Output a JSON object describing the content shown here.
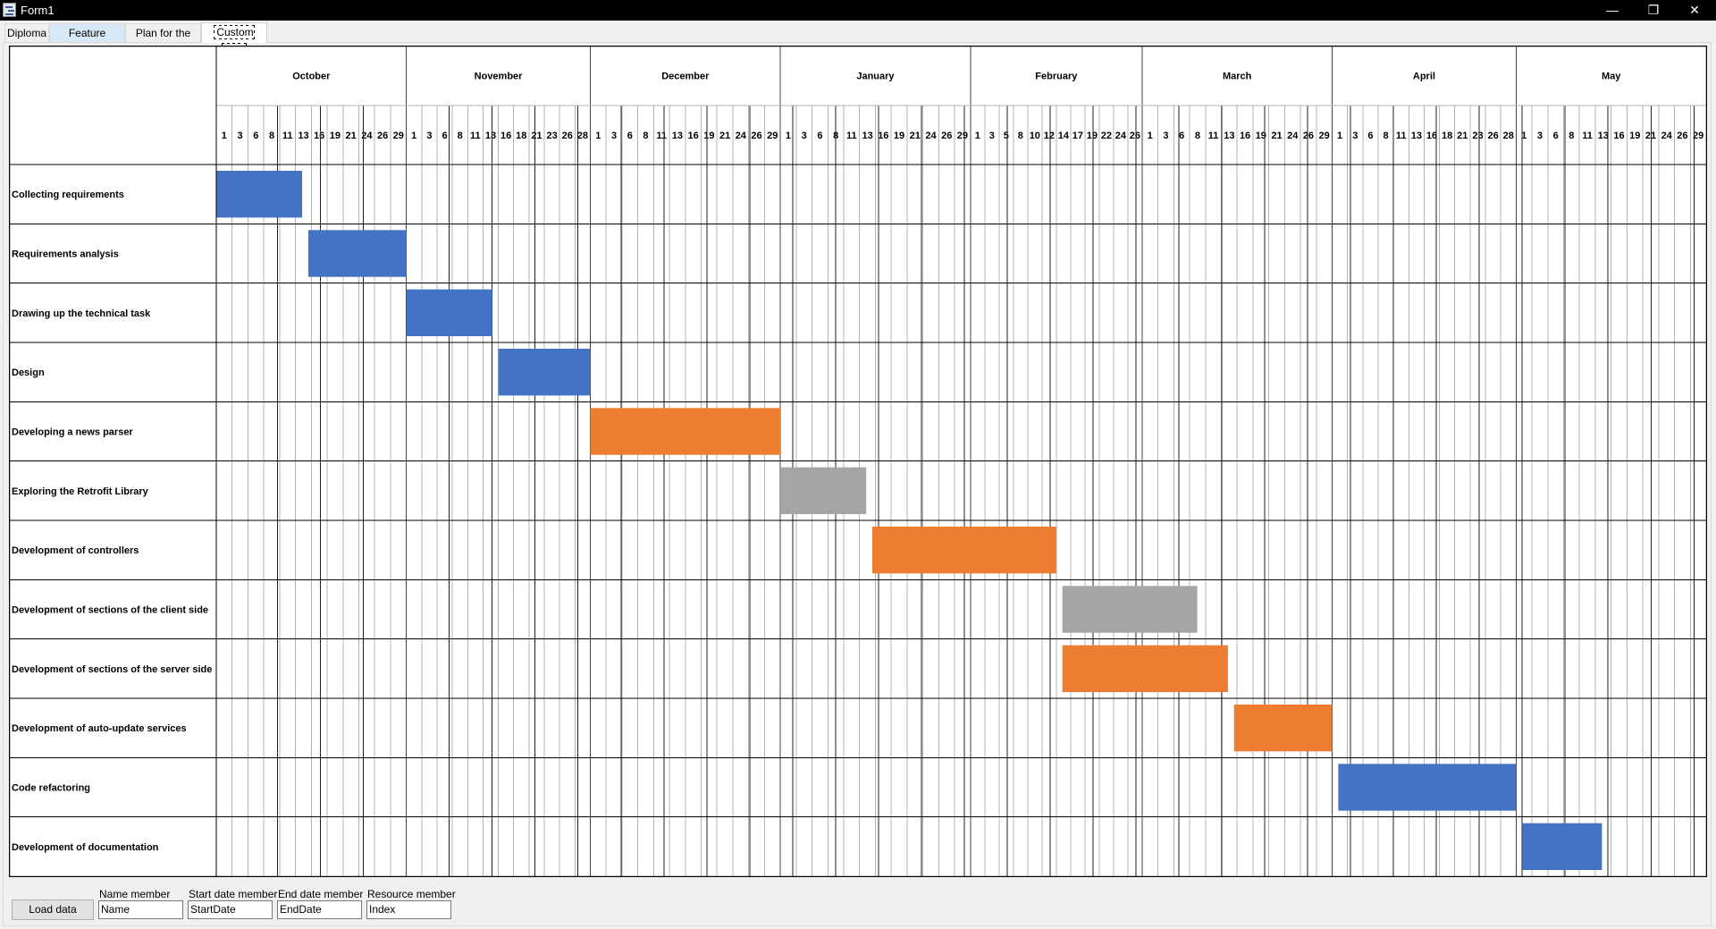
{
  "window": {
    "title": "Form1",
    "minimize_icon": "minimize-icon",
    "restore_icon": "restore-icon",
    "close_icon": "close-icon"
  },
  "tabs": [
    {
      "label": "Diploma"
    },
    {
      "label": "Feature release"
    },
    {
      "label": "Plan for the day"
    },
    {
      "label": "Custom data",
      "selected": true
    }
  ],
  "chart_data": {
    "type": "gantt",
    "months": [
      {
        "name": "October",
        "days": 31,
        "ticks": [
          1,
          3,
          6,
          8,
          11,
          13,
          16,
          19,
          21,
          24,
          26,
          29
        ]
      },
      {
        "name": "November",
        "days": 30,
        "ticks": [
          1,
          3,
          6,
          8,
          11,
          13,
          16,
          18,
          21,
          23,
          26,
          28
        ]
      },
      {
        "name": "December",
        "days": 31,
        "ticks": [
          1,
          3,
          6,
          8,
          11,
          13,
          16,
          19,
          21,
          24,
          26,
          29
        ]
      },
      {
        "name": "January",
        "days": 31,
        "ticks": [
          1,
          3,
          6,
          8,
          11,
          13,
          16,
          19,
          21,
          24,
          26,
          29
        ]
      },
      {
        "name": "February",
        "days": 28,
        "ticks": [
          1,
          3,
          5,
          8,
          10,
          12,
          14,
          17,
          19,
          22,
          24,
          26
        ]
      },
      {
        "name": "March",
        "days": 31,
        "ticks": [
          1,
          3,
          6,
          8,
          11,
          13,
          16,
          19,
          21,
          24,
          26,
          29
        ]
      },
      {
        "name": "April",
        "days": 30,
        "ticks": [
          1,
          3,
          6,
          8,
          11,
          13,
          16,
          18,
          21,
          23,
          26,
          28
        ]
      },
      {
        "name": "May",
        "days": 31,
        "ticks": [
          1,
          3,
          6,
          8,
          11,
          13,
          16,
          19,
          21,
          24,
          26,
          29
        ]
      }
    ],
    "resource_colors": [
      "#4472C4",
      "#ED7D31",
      "#A5A5A5"
    ],
    "tasks": [
      {
        "name": "Collecting requirements",
        "start": "October 1",
        "end": "October 15",
        "resource": 0
      },
      {
        "name": "Requirements analysis",
        "start": "October 16",
        "end": "November 1",
        "resource": 0
      },
      {
        "name": "Drawing up the technical task",
        "start": "November 1",
        "end": "November 15",
        "resource": 0
      },
      {
        "name": "Design",
        "start": "November 16",
        "end": "December 1",
        "resource": 0
      },
      {
        "name": "Developing a news parser",
        "start": "December 1",
        "end": "January 1",
        "resource": 1
      },
      {
        "name": "Exploring the Retrofit Library",
        "start": "January 1",
        "end": "January 15",
        "resource": 2
      },
      {
        "name": "Development of controllers",
        "start": "January 16",
        "end": "February 15",
        "resource": 1
      },
      {
        "name": "Development of sections of the client side",
        "start": "February 16",
        "end": "March 10",
        "resource": 2
      },
      {
        "name": "Development of sections of the server side",
        "start": "February 16",
        "end": "March 15",
        "resource": 1
      },
      {
        "name": "Development of auto-update services",
        "start": "March 16",
        "end": "April 1",
        "resource": 1
      },
      {
        "name": "Code refactoring",
        "start": "April 2",
        "end": "May 1",
        "resource": 0
      },
      {
        "name": "Development of documentation",
        "start": "May 2",
        "end": "May 15",
        "resource": 0
      }
    ]
  },
  "footer": {
    "load_button": "Load data",
    "fields": [
      {
        "label": "Name member",
        "value": "Name"
      },
      {
        "label": "Start date member",
        "value": "StartDate"
      },
      {
        "label": "End date member",
        "value": "EndDate"
      },
      {
        "label": "Resource member",
        "value": "Index"
      }
    ]
  }
}
